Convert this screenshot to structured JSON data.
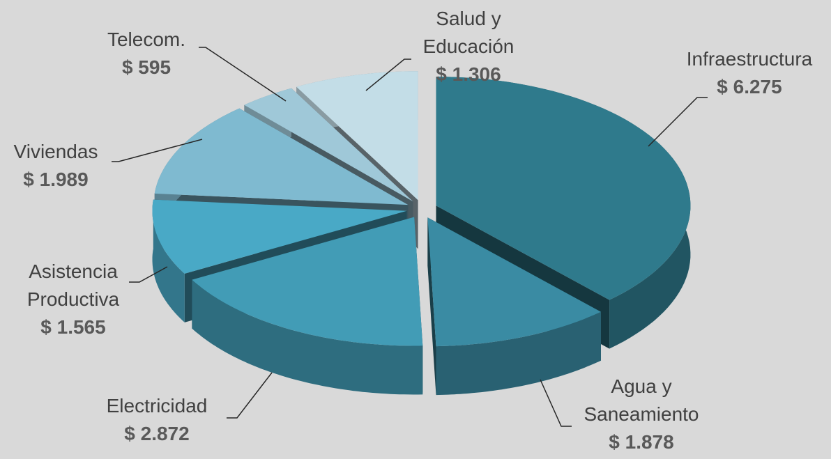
{
  "chart_data": {
    "type": "pie",
    "categories": [
      "Infraestructura",
      "Agua y Saneamiento",
      "Electricidad",
      "Asistencia Productiva",
      "Viviendas",
      "Telecom.",
      "Salud y Educación"
    ],
    "values": [
      6275,
      1878,
      2872,
      1565,
      1989,
      595,
      1306
    ],
    "value_labels": [
      "$ 6.275",
      "$ 1.878",
      "$ 2.872",
      "$ 1.565",
      "$ 1.989",
      "$ 595",
      "$ 1.306"
    ],
    "colors": [
      "#2f7a8c",
      "#3a8ba3",
      "#429cb6",
      "#49a9c6",
      "#7fbad0",
      "#9fc8d8",
      "#c3dde7"
    ]
  }
}
